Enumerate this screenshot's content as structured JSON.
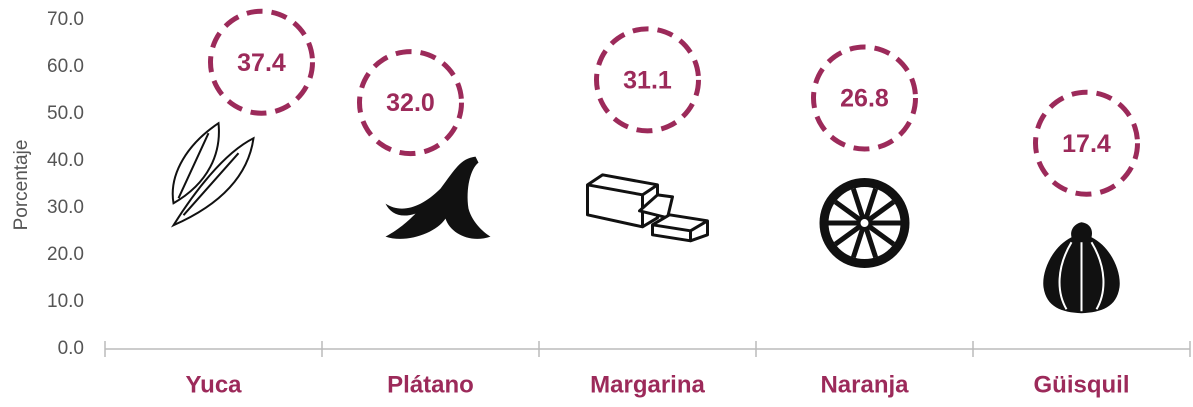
{
  "chart_data": {
    "type": "pictogram",
    "y_axis_label": "Porcentaje",
    "categories": [
      "Yuca",
      "Plátano",
      "Margarina",
      "Naranja",
      "Güisquil"
    ],
    "values": [
      37.4,
      32.0,
      31.1,
      26.8,
      17.4
    ],
    "value_labels": [
      "37.4",
      "32.0",
      "31.1",
      "26.8",
      "17.4"
    ],
    "color": "#9c2a5a",
    "ylim": [
      0,
      70
    ],
    "yticks": [
      {
        "value": 0,
        "label": "0.0"
      },
      {
        "value": 10,
        "label": "10.0"
      },
      {
        "value": 20,
        "label": "20.0"
      },
      {
        "value": 30,
        "label": "30.0"
      },
      {
        "value": 40,
        "label": "40.0"
      },
      {
        "value": 50,
        "label": "50.0"
      },
      {
        "value": 60,
        "label": "60.0"
      },
      {
        "value": 70,
        "label": "70.0"
      }
    ]
  }
}
